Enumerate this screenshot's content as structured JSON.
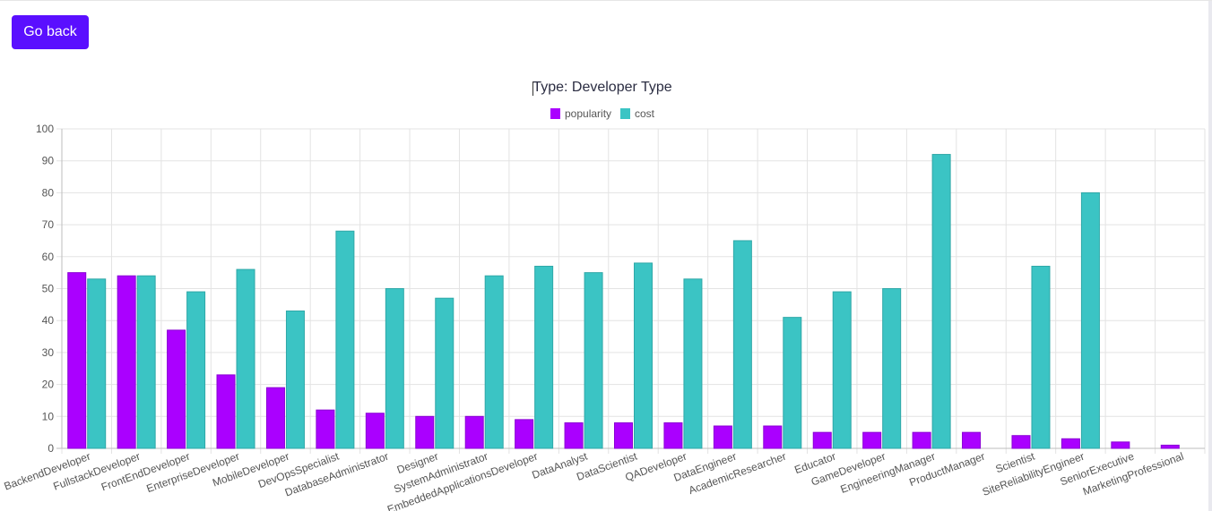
{
  "header": {
    "back_label": "Go back"
  },
  "chart_data": {
    "type": "bar",
    "title": "Type: Developer Type",
    "xlabel": "",
    "ylabel": "",
    "ylim": [
      0,
      100
    ],
    "yticks": [
      0,
      10,
      20,
      30,
      40,
      50,
      60,
      70,
      80,
      90,
      100
    ],
    "grid": true,
    "legend_position": "top",
    "categories": [
      "BackendDeveloper",
      "FullstackDeveloper",
      "FrontEndDeveloper",
      "EnterpriseDeveloper",
      "MobileDeveloper",
      "DevOpsSpecialist",
      "DatabaseAdministrator",
      "Designer",
      "SystemAdministrator",
      "EmbeddedApplicationsDeveloper",
      "DataAnalyst",
      "DataScientist",
      "QADeveloper",
      "DataEngineer",
      "AcademicResearcher",
      "Educator",
      "GameDeveloper",
      "EngineeringManager",
      "ProductManager",
      "Scientist",
      "SiteReliabilityEngineer",
      "SeniorExecutive",
      "MarketingProfessional"
    ],
    "series": [
      {
        "name": "popularity",
        "color": "#aa00ff",
        "values": [
          55,
          54,
          37,
          23,
          19,
          12,
          11,
          10,
          10,
          9,
          8,
          8,
          8,
          7,
          7,
          5,
          5,
          5,
          5,
          4,
          3,
          2,
          1
        ]
      },
      {
        "name": "cost",
        "color": "#3bc4c4",
        "values": [
          53,
          54,
          49,
          56,
          43,
          68,
          50,
          47,
          54,
          57,
          55,
          58,
          53,
          65,
          41,
          49,
          50,
          92,
          null,
          57,
          80,
          null,
          null
        ]
      }
    ]
  }
}
